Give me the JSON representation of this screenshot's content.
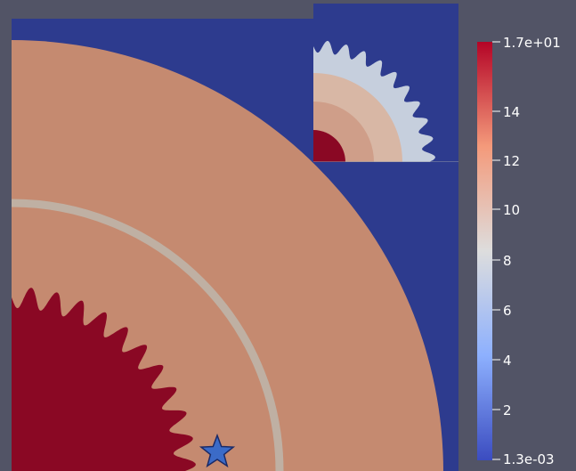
{
  "colorbar": {
    "title": "",
    "max_label": "1.7e+01",
    "min_label": "1.3e-03",
    "ticks": [
      "14",
      "12",
      "10",
      "8",
      "6",
      "4",
      "2"
    ],
    "range": [
      0.0013,
      17
    ]
  },
  "colors": {
    "background": "#525466",
    "outer_domain": "#2d3b8e",
    "ring": "#c58a70",
    "band": "#bfb0a3",
    "core": "#8a0824",
    "marker": "#3b6bc8",
    "header_bar": "#525466"
  },
  "marker": {
    "icon": "star-icon"
  }
}
